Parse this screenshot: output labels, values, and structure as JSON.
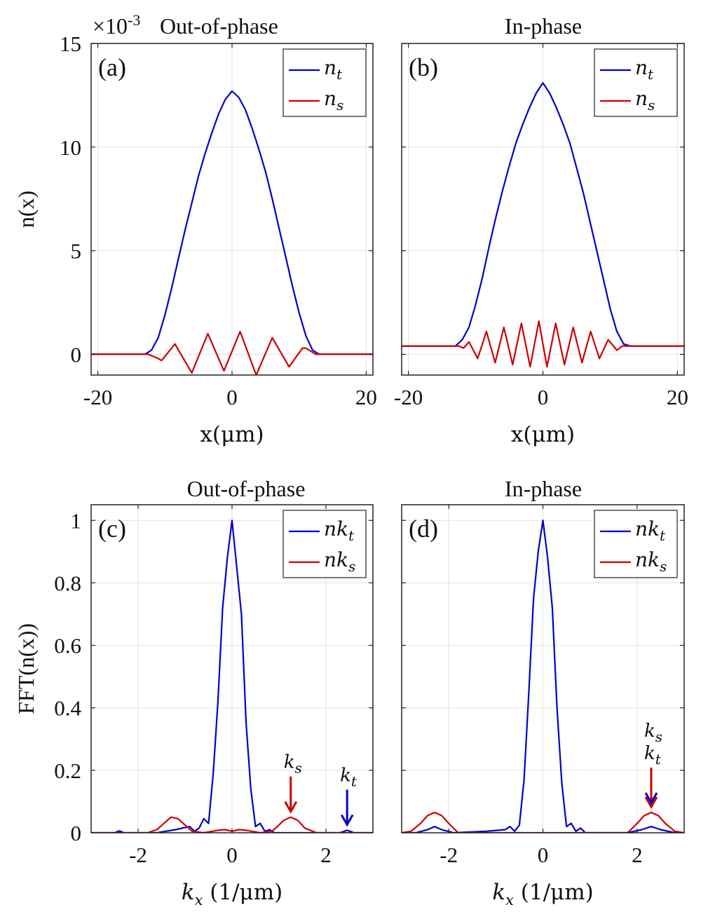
{
  "figure": {
    "exponent_base": "×10",
    "exponent_power": "-3"
  },
  "chart_data": [
    {
      "type": "line",
      "label": "(a)",
      "title": "Out-of-phase",
      "xlabel": "x(μm)",
      "ylabel": "n(x)",
      "xlim": [
        -21,
        21
      ],
      "ylim": [
        -0.001,
        0.015
      ],
      "xticks": [
        -20,
        0,
        20
      ],
      "xtick_labels": [
        "-20",
        "0",
        "20"
      ],
      "yticks": [
        0,
        0.005,
        0.01,
        0.015
      ],
      "ytick_labels": [
        "0",
        "5",
        "10",
        "15"
      ],
      "grid": true,
      "legend": "top-right",
      "series": [
        {
          "name": "n_t",
          "sub": "t",
          "color": "#0000cc",
          "x": [
            -21,
            -13,
            -12,
            -11,
            -10,
            -9,
            -8,
            -7,
            -6,
            -5,
            -4,
            -3,
            -2,
            -1,
            0,
            1,
            2,
            3,
            4,
            5,
            6,
            7,
            8,
            9,
            10,
            11,
            12,
            13,
            21
          ],
          "y": [
            0,
            0,
            0.0002,
            0.0008,
            0.0019,
            0.0032,
            0.0046,
            0.006,
            0.0073,
            0.0086,
            0.0097,
            0.0107,
            0.0116,
            0.0123,
            0.0127,
            0.0124,
            0.0118,
            0.0109,
            0.0099,
            0.0088,
            0.0075,
            0.0061,
            0.0047,
            0.0033,
            0.002,
            0.0009,
            0.0002,
            0,
            0
          ]
        },
        {
          "name": "n_s",
          "sub": "s",
          "color": "#cc0000",
          "x": [
            -21,
            -12.5,
            -11,
            -10.5,
            -8.5,
            -6,
            -3.6,
            -1.2,
            1.2,
            3.6,
            6,
            8.5,
            10.5,
            11,
            12.5,
            21
          ],
          "y": [
            0,
            0,
            -0.0002,
            -0.0003,
            0.0005,
            -0.0009,
            0.001,
            -0.0008,
            0.0011,
            -0.001,
            0.0008,
            -0.0006,
            0.0003,
            0.0003,
            0,
            0
          ]
        }
      ]
    },
    {
      "type": "line",
      "label": "(b)",
      "title": "In-phase",
      "xlabel": "x(μm)",
      "ylabel": "",
      "xlim": [
        -21,
        21
      ],
      "ylim": [
        -0.001,
        0.015
      ],
      "xticks": [
        -20,
        0,
        20
      ],
      "xtick_labels": [
        "-20",
        "0",
        "20"
      ],
      "yticks": [
        0,
        0.005,
        0.01,
        0.015
      ],
      "ytick_labels": [],
      "grid": true,
      "legend": "top-right",
      "series": [
        {
          "name": "n_t",
          "sub": "t",
          "color": "#0000cc",
          "x": [
            -21,
            -13,
            -12,
            -11,
            -10,
            -9,
            -8,
            -7,
            -6,
            -5,
            -4,
            -3,
            -2,
            -1,
            0,
            1,
            2,
            3,
            4,
            5,
            6,
            7,
            8,
            9,
            10,
            11,
            12,
            13,
            21
          ],
          "y": [
            0.0004,
            0.0004,
            0.0007,
            0.0013,
            0.0024,
            0.0037,
            0.0052,
            0.0066,
            0.0079,
            0.0091,
            0.0102,
            0.0111,
            0.0119,
            0.0126,
            0.0131,
            0.0126,
            0.0119,
            0.0111,
            0.0102,
            0.009,
            0.0078,
            0.0064,
            0.005,
            0.0036,
            0.0022,
            0.0011,
            0.0005,
            0.0004,
            0.0004
          ]
        },
        {
          "name": "n_s",
          "sub": "s",
          "color": "#cc0000",
          "x": [
            -21,
            -12.5,
            -11.8,
            -11,
            -9.7,
            -8.4,
            -7.1,
            -5.8,
            -4.5,
            -3.2,
            -1.9,
            -0.6,
            0.6,
            1.9,
            3.2,
            4.5,
            5.8,
            7.1,
            8.4,
            9.7,
            11,
            11.8,
            12.5,
            21
          ],
          "y": [
            0.0004,
            0.0004,
            0.0003,
            0.0006,
            -0.0002,
            0.0011,
            -0.0004,
            0.0013,
            -0.0005,
            0.0015,
            -0.0006,
            0.0016,
            -0.0006,
            0.0015,
            -0.0005,
            0.0013,
            -0.0004,
            0.0011,
            -0.0002,
            0.0007,
            0.0002,
            0.0004,
            0.0004,
            0.0004
          ]
        }
      ]
    },
    {
      "type": "line",
      "label": "(c)",
      "title": "Out-of-phase",
      "xlabel": "k_x (1/μm)",
      "ylabel": "FFT(n(x))",
      "xlim": [
        -3,
        3
      ],
      "ylim": [
        0,
        1.05
      ],
      "xticks": [
        -2,
        0,
        2
      ],
      "xtick_labels": [
        "-2",
        "0",
        "2"
      ],
      "yticks": [
        0,
        0.2,
        0.4,
        0.6,
        0.8,
        1
      ],
      "ytick_labels": [
        "0",
        "0.2",
        "0.4",
        "0.6",
        "0.8",
        "1"
      ],
      "grid": true,
      "legend": "top-right",
      "series": [
        {
          "name": "nk_t",
          "sub": "t",
          "color": "#0000cc",
          "x": [
            -3,
            -2.5,
            -2.4,
            -2.3,
            -1.6,
            -1.2,
            -0.9,
            -0.8,
            -0.7,
            -0.6,
            -0.5,
            -0.4,
            -0.3,
            -0.2,
            -0.1,
            0,
            0.1,
            0.2,
            0.3,
            0.4,
            0.5,
            0.6,
            0.7,
            0.8,
            0.9,
            1.5,
            2.3,
            2.45,
            2.6,
            3
          ],
          "y": [
            0,
            0,
            0.006,
            0,
            0,
            0.01,
            0.02,
            0.005,
            0.015,
            0.045,
            0.03,
            0.19,
            0.42,
            0.72,
            0.88,
            1.0,
            0.85,
            0.7,
            0.35,
            0.14,
            0.02,
            0.03,
            0.005,
            0.01,
            0,
            0,
            0,
            0.008,
            0,
            0
          ]
        },
        {
          "name": "nk_s",
          "sub": "s",
          "color": "#cc0000",
          "x": [
            -3,
            -1.8,
            -1.6,
            -1.45,
            -1.3,
            -1.15,
            -1.0,
            -0.85,
            -0.6,
            -0.3,
            -0.15,
            0,
            0.15,
            0.3,
            0.6,
            0.85,
            1.0,
            1.1,
            1.25,
            1.4,
            1.55,
            1.8,
            3
          ],
          "y": [
            0,
            0,
            0.01,
            0.03,
            0.05,
            0.045,
            0.025,
            0.005,
            0,
            0.008,
            0.01,
            0.005,
            0.01,
            0.008,
            0,
            0.005,
            0.025,
            0.04,
            0.05,
            0.04,
            0.015,
            0,
            0
          ]
        }
      ],
      "annotations": [
        {
          "text": "k_s",
          "base": "k",
          "sub": "s",
          "x": 1.25,
          "y": 0.05,
          "color": "#cc0000"
        },
        {
          "text": "k_t",
          "base": "k",
          "sub": "t",
          "x": 2.45,
          "y": 0.008,
          "color": "#0000cc"
        }
      ]
    },
    {
      "type": "line",
      "label": "(d)",
      "title": "In-phase",
      "xlabel": "k_x (1/μm)",
      "ylabel": "",
      "xlim": [
        -3,
        3
      ],
      "ylim": [
        0,
        1.05
      ],
      "xticks": [
        -2,
        0,
        2
      ],
      "xtick_labels": [
        "-2",
        "0",
        "2"
      ],
      "yticks": [
        0,
        0.2,
        0.4,
        0.6,
        0.8,
        1
      ],
      "ytick_labels": [],
      "grid": true,
      "legend": "top-right",
      "series": [
        {
          "name": "nk_t",
          "sub": "t",
          "color": "#0000cc",
          "x": [
            -3,
            -2.7,
            -2.45,
            -2.3,
            -2.15,
            -1.9,
            -1.2,
            -0.8,
            -0.7,
            -0.6,
            -0.5,
            -0.4,
            -0.3,
            -0.2,
            -0.1,
            0,
            0.1,
            0.2,
            0.3,
            0.4,
            0.5,
            0.6,
            0.7,
            0.8,
            0.9,
            1.8,
            2.1,
            2.3,
            2.5,
            2.8,
            3
          ],
          "y": [
            0,
            0,
            0.01,
            0.02,
            0.01,
            0,
            0.005,
            0.01,
            0.02,
            0.005,
            0.025,
            0.17,
            0.45,
            0.75,
            0.9,
            1.0,
            0.88,
            0.72,
            0.4,
            0.16,
            0.02,
            0.03,
            0.005,
            0.015,
            0,
            0,
            0.01,
            0.02,
            0.01,
            0,
            0
          ]
        },
        {
          "name": "nk_s",
          "sub": "s",
          "color": "#cc0000",
          "x": [
            -3,
            -2.8,
            -2.6,
            -2.45,
            -2.3,
            -2.15,
            -2.0,
            -1.8,
            1.8,
            2.0,
            2.15,
            2.3,
            2.45,
            2.6,
            2.8,
            3
          ],
          "y": [
            0,
            0.005,
            0.03,
            0.055,
            0.065,
            0.055,
            0.03,
            0,
            0,
            0.03,
            0.055,
            0.065,
            0.055,
            0.03,
            0.005,
            0
          ]
        }
      ],
      "annotations": [
        {
          "text": "k_s",
          "base": "k",
          "sub": "s",
          "x": 2.3,
          "y": 0.065,
          "color": "#cc0000",
          "stack": 0
        },
        {
          "text": "k_t",
          "base": "k",
          "sub": "t",
          "x": 2.3,
          "y": 0.065,
          "color": "#0000cc",
          "stack": 1
        }
      ]
    }
  ]
}
